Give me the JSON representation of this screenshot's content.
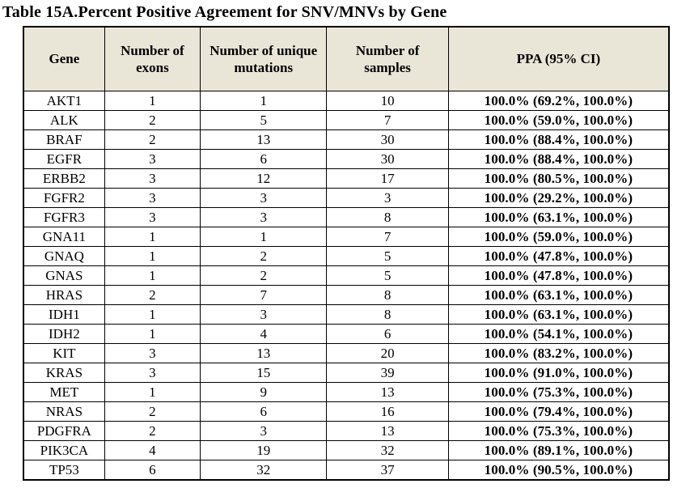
{
  "title": "Table 15A.Percent Positive Agreement for SNV/MNVs by Gene",
  "colors": {
    "header_bg": "#eae6d7",
    "border": "#000000",
    "text": "#000000",
    "page_bg": "#ffffff"
  },
  "table": {
    "columns": [
      {
        "key": "gene",
        "label": "Gene"
      },
      {
        "key": "exons",
        "label": "Number of exons"
      },
      {
        "key": "unique_mutations",
        "label": "Number of unique mutations"
      },
      {
        "key": "samples",
        "label": "Number of samples"
      },
      {
        "key": "ppa",
        "label": "PPA (95% CI)"
      }
    ],
    "rows": [
      {
        "gene": "AKT1",
        "exons": "1",
        "unique_mutations": "1",
        "samples": "10",
        "ppa": "100.0% (69.2%, 100.0%)"
      },
      {
        "gene": "ALK",
        "exons": "2",
        "unique_mutations": "5",
        "samples": "7",
        "ppa": "100.0% (59.0%, 100.0%)"
      },
      {
        "gene": "BRAF",
        "exons": "2",
        "unique_mutations": "13",
        "samples": "30",
        "ppa": "100.0% (88.4%, 100.0%)"
      },
      {
        "gene": "EGFR",
        "exons": "3",
        "unique_mutations": "6",
        "samples": "30",
        "ppa": "100.0% (88.4%, 100.0%)"
      },
      {
        "gene": "ERBB2",
        "exons": "3",
        "unique_mutations": "12",
        "samples": "17",
        "ppa": "100.0% (80.5%, 100.0%)"
      },
      {
        "gene": "FGFR2",
        "exons": "3",
        "unique_mutations": "3",
        "samples": "3",
        "ppa": "100.0% (29.2%, 100.0%)"
      },
      {
        "gene": "FGFR3",
        "exons": "3",
        "unique_mutations": "3",
        "samples": "8",
        "ppa": "100.0% (63.1%, 100.0%)"
      },
      {
        "gene": "GNA11",
        "exons": "1",
        "unique_mutations": "1",
        "samples": "7",
        "ppa": "100.0% (59.0%, 100.0%)"
      },
      {
        "gene": "GNAQ",
        "exons": "1",
        "unique_mutations": "2",
        "samples": "5",
        "ppa": "100.0% (47.8%, 100.0%)"
      },
      {
        "gene": "GNAS",
        "exons": "1",
        "unique_mutations": "2",
        "samples": "5",
        "ppa": "100.0% (47.8%, 100.0%)"
      },
      {
        "gene": "HRAS",
        "exons": "2",
        "unique_mutations": "7",
        "samples": "8",
        "ppa": "100.0% (63.1%, 100.0%)"
      },
      {
        "gene": "IDH1",
        "exons": "1",
        "unique_mutations": "3",
        "samples": "8",
        "ppa": "100.0% (63.1%, 100.0%)"
      },
      {
        "gene": "IDH2",
        "exons": "1",
        "unique_mutations": "4",
        "samples": "6",
        "ppa": "100.0% (54.1%, 100.0%)"
      },
      {
        "gene": "KIT",
        "exons": "3",
        "unique_mutations": "13",
        "samples": "20",
        "ppa": "100.0% (83.2%, 100.0%)"
      },
      {
        "gene": "KRAS",
        "exons": "3",
        "unique_mutations": "15",
        "samples": "39",
        "ppa": "100.0% (91.0%, 100.0%)"
      },
      {
        "gene": "MET",
        "exons": "1",
        "unique_mutations": "9",
        "samples": "13",
        "ppa": "100.0% (75.3%, 100.0%)"
      },
      {
        "gene": "NRAS",
        "exons": "2",
        "unique_mutations": "6",
        "samples": "16",
        "ppa": "100.0% (79.4%, 100.0%)"
      },
      {
        "gene": "PDGFRA",
        "exons": "2",
        "unique_mutations": "3",
        "samples": "13",
        "ppa": "100.0% (75.3%, 100.0%)"
      },
      {
        "gene": "PIK3CA",
        "exons": "4",
        "unique_mutations": "19",
        "samples": "32",
        "ppa": "100.0% (89.1%, 100.0%)"
      },
      {
        "gene": "TP53",
        "exons": "6",
        "unique_mutations": "32",
        "samples": "37",
        "ppa": "100.0% (90.5%, 100.0%)"
      }
    ]
  }
}
